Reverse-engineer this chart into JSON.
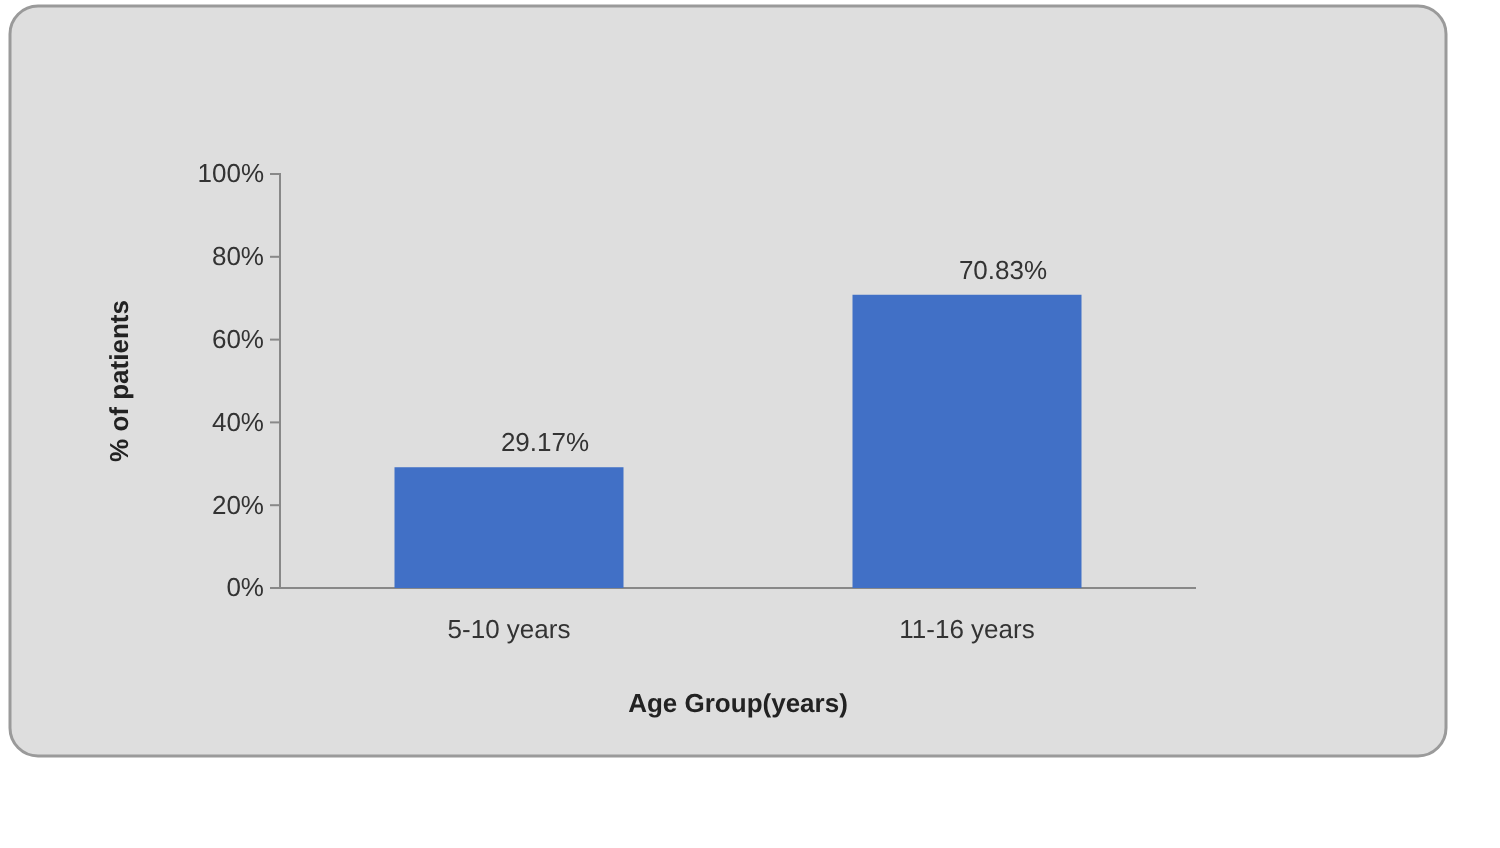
{
  "chart_data": {
    "type": "bar",
    "xlabel": "Age Group(years)",
    "ylabel": "% of patients",
    "categories": [
      "5-10  years",
      "11-16 years"
    ],
    "values": [
      29.17,
      70.83
    ],
    "color": "#4170c6",
    "value_labels": [
      "29.17%",
      "70.83%"
    ],
    "ylim": [
      0,
      100
    ],
    "yticks": [
      {
        "value": 0,
        "label": "0%"
      },
      {
        "value": 20,
        "label": "20%"
      },
      {
        "value": 40,
        "label": "40%"
      },
      {
        "value": 60,
        "label": "60%"
      },
      {
        "value": 80,
        "label": "80%"
      },
      {
        "value": 100,
        "label": "100%"
      }
    ],
    "grid": false
  }
}
